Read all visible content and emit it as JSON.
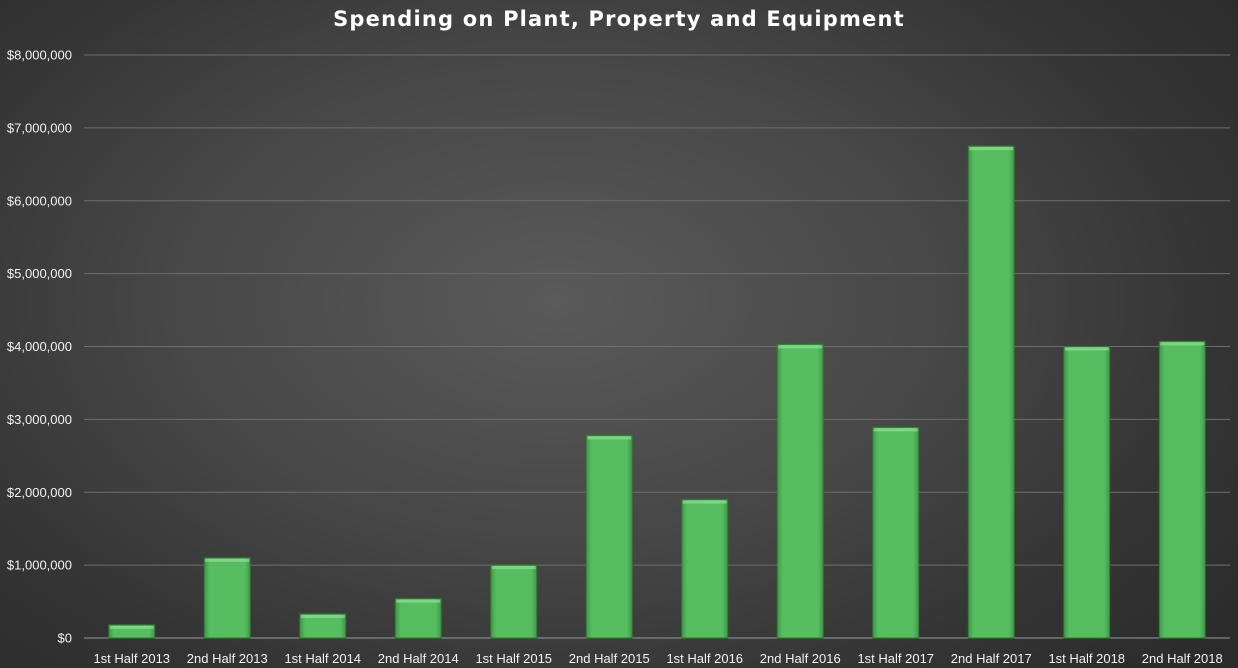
{
  "chart_data": {
    "type": "bar",
    "title": "Spending on Plant, Property and Equipment",
    "categories": [
      "1st Half 2013",
      "2nd Half 2013",
      "1st Half 2014",
      "2nd Half 2014",
      "1st Half 2015",
      "2nd Half 2015",
      "1st Half 2016",
      "2nd Half 2016",
      "1st Half 2017",
      "2nd Half 2017",
      "1st Half 2018",
      "2nd Half 2018"
    ],
    "values": [
      180000,
      1100000,
      330000,
      540000,
      1000000,
      2780000,
      1900000,
      4030000,
      2890000,
      6750000,
      4000000,
      4070000
    ],
    "ylim": [
      0,
      8000000
    ],
    "yticks": [
      0,
      1000000,
      2000000,
      3000000,
      4000000,
      5000000,
      6000000,
      7000000,
      8000000
    ],
    "ytick_labels": [
      "$0",
      "$1,000,000",
      "$2,000,000",
      "$3,000,000",
      "$4,000,000",
      "$5,000,000",
      "$6,000,000",
      "$7,000,000",
      "$8,000,000"
    ],
    "xlabel": "",
    "ylabel": "",
    "grid": true,
    "legend": "none",
    "bar_color": "#52b95c"
  }
}
